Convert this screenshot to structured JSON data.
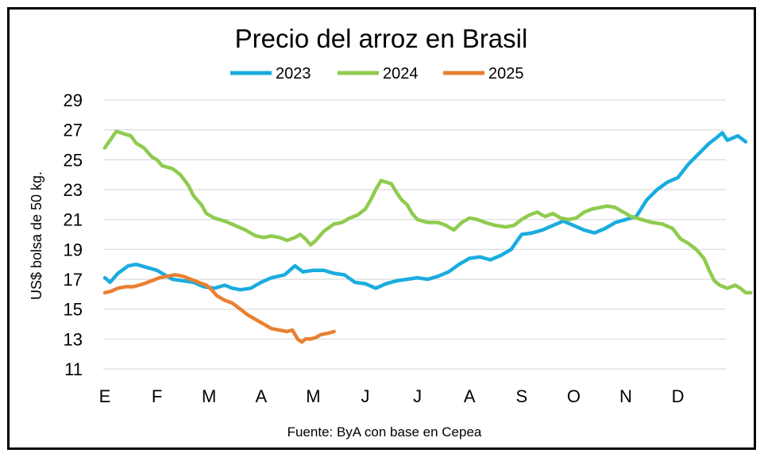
{
  "chart_data": {
    "type": "line",
    "title": "Precio del arroz en Brasil",
    "ylabel": "US$ bolsa de 50 kg.",
    "xlabel": "",
    "source": "Fuente: ByA con base en Cepea",
    "ylim": [
      11,
      29
    ],
    "yticks": [
      "11",
      "13",
      "15",
      "17",
      "19",
      "21",
      "23",
      "25",
      "27",
      "29"
    ],
    "categories": [
      "E",
      "F",
      "M",
      "A",
      "M",
      "J",
      "J",
      "A",
      "S",
      "O",
      "N",
      "D"
    ],
    "grid": "horizontal",
    "legend_position": "top-center",
    "series": [
      {
        "name": "2023",
        "color": "#1AACDF",
        "points": [
          [
            0.0,
            17.1
          ],
          [
            0.1,
            16.8
          ],
          [
            0.25,
            17.4
          ],
          [
            0.45,
            17.9
          ],
          [
            0.6,
            18.0
          ],
          [
            0.8,
            17.8
          ],
          [
            1.0,
            17.6
          ],
          [
            1.15,
            17.3
          ],
          [
            1.3,
            17.0
          ],
          [
            1.5,
            16.9
          ],
          [
            1.7,
            16.8
          ],
          [
            1.9,
            16.5
          ],
          [
            2.1,
            16.4
          ],
          [
            2.3,
            16.6
          ],
          [
            2.45,
            16.4
          ],
          [
            2.6,
            16.3
          ],
          [
            2.8,
            16.4
          ],
          [
            3.0,
            16.8
          ],
          [
            3.2,
            17.1
          ],
          [
            3.45,
            17.3
          ],
          [
            3.65,
            17.9
          ],
          [
            3.8,
            17.5
          ],
          [
            4.0,
            17.6
          ],
          [
            4.2,
            17.6
          ],
          [
            4.4,
            17.4
          ],
          [
            4.6,
            17.3
          ],
          [
            4.8,
            16.8
          ],
          [
            5.0,
            16.7
          ],
          [
            5.2,
            16.4
          ],
          [
            5.4,
            16.7
          ],
          [
            5.6,
            16.9
          ],
          [
            5.8,
            17.0
          ],
          [
            6.0,
            17.1
          ],
          [
            6.2,
            17.0
          ],
          [
            6.4,
            17.2
          ],
          [
            6.6,
            17.5
          ],
          [
            6.8,
            18.0
          ],
          [
            7.0,
            18.4
          ],
          [
            7.2,
            18.5
          ],
          [
            7.4,
            18.3
          ],
          [
            7.6,
            18.6
          ],
          [
            7.8,
            19.0
          ],
          [
            8.0,
            20.0
          ],
          [
            8.2,
            20.1
          ],
          [
            8.4,
            20.3
          ],
          [
            8.6,
            20.6
          ],
          [
            8.8,
            20.9
          ],
          [
            9.0,
            20.6
          ],
          [
            9.2,
            20.3
          ],
          [
            9.4,
            20.1
          ],
          [
            9.6,
            20.4
          ],
          [
            9.8,
            20.8
          ],
          [
            10.0,
            21.0
          ],
          [
            10.2,
            21.2
          ],
          [
            10.4,
            22.3
          ],
          [
            10.6,
            23.0
          ],
          [
            10.8,
            23.5
          ],
          [
            11.0,
            23.8
          ],
          [
            11.2,
            24.7
          ],
          [
            11.4,
            25.4
          ],
          [
            11.6,
            26.1
          ],
          [
            11.75,
            26.5
          ],
          [
            11.85,
            26.8
          ],
          [
            11.95,
            26.3
          ],
          [
            12.15,
            26.6
          ],
          [
            12.3,
            26.2
          ]
        ]
      },
      {
        "name": "2024",
        "color": "#8FCB4E",
        "points": [
          [
            0.0,
            25.8
          ],
          [
            0.1,
            26.3
          ],
          [
            0.22,
            26.9
          ],
          [
            0.4,
            26.7
          ],
          [
            0.5,
            26.6
          ],
          [
            0.6,
            26.1
          ],
          [
            0.75,
            25.8
          ],
          [
            0.9,
            25.2
          ],
          [
            1.0,
            25.0
          ],
          [
            1.1,
            24.6
          ],
          [
            1.3,
            24.4
          ],
          [
            1.45,
            24.0
          ],
          [
            1.6,
            23.3
          ],
          [
            1.7,
            22.6
          ],
          [
            1.85,
            22.0
          ],
          [
            1.95,
            21.4
          ],
          [
            2.1,
            21.1
          ],
          [
            2.3,
            20.9
          ],
          [
            2.5,
            20.6
          ],
          [
            2.7,
            20.3
          ],
          [
            2.9,
            19.9
          ],
          [
            3.05,
            19.8
          ],
          [
            3.2,
            19.9
          ],
          [
            3.35,
            19.8
          ],
          [
            3.5,
            19.6
          ],
          [
            3.65,
            19.8
          ],
          [
            3.75,
            20.0
          ],
          [
            3.85,
            19.7
          ],
          [
            3.95,
            19.3
          ],
          [
            4.05,
            19.6
          ],
          [
            4.2,
            20.2
          ],
          [
            4.4,
            20.7
          ],
          [
            4.55,
            20.8
          ],
          [
            4.7,
            21.1
          ],
          [
            4.85,
            21.3
          ],
          [
            5.0,
            21.7
          ],
          [
            5.1,
            22.3
          ],
          [
            5.2,
            23.0
          ],
          [
            5.3,
            23.6
          ],
          [
            5.4,
            23.5
          ],
          [
            5.5,
            23.4
          ],
          [
            5.6,
            22.8
          ],
          [
            5.7,
            22.3
          ],
          [
            5.8,
            22.0
          ],
          [
            5.9,
            21.4
          ],
          [
            6.0,
            21.0
          ],
          [
            6.2,
            20.8
          ],
          [
            6.4,
            20.8
          ],
          [
            6.55,
            20.6
          ],
          [
            6.7,
            20.3
          ],
          [
            6.85,
            20.8
          ],
          [
            7.0,
            21.1
          ],
          [
            7.15,
            21.0
          ],
          [
            7.3,
            20.8
          ],
          [
            7.5,
            20.6
          ],
          [
            7.7,
            20.5
          ],
          [
            7.85,
            20.6
          ],
          [
            8.0,
            21.0
          ],
          [
            8.15,
            21.3
          ],
          [
            8.3,
            21.5
          ],
          [
            8.45,
            21.2
          ],
          [
            8.6,
            21.4
          ],
          [
            8.75,
            21.1
          ],
          [
            8.9,
            21.0
          ],
          [
            9.05,
            21.1
          ],
          [
            9.2,
            21.5
          ],
          [
            9.35,
            21.7
          ],
          [
            9.5,
            21.8
          ],
          [
            9.65,
            21.9
          ],
          [
            9.8,
            21.8
          ],
          [
            9.95,
            21.5
          ],
          [
            10.1,
            21.2
          ],
          [
            10.3,
            21.0
          ],
          [
            10.5,
            20.8
          ],
          [
            10.7,
            20.7
          ],
          [
            10.9,
            20.4
          ],
          [
            11.05,
            19.7
          ],
          [
            11.2,
            19.4
          ],
          [
            11.35,
            19.0
          ],
          [
            11.5,
            18.4
          ],
          [
            11.6,
            17.6
          ],
          [
            11.7,
            16.9
          ],
          [
            11.8,
            16.6
          ],
          [
            11.95,
            16.4
          ],
          [
            12.1,
            16.6
          ],
          [
            12.2,
            16.4
          ],
          [
            12.3,
            16.1
          ],
          [
            12.4,
            16.1
          ]
        ]
      },
      {
        "name": "2025",
        "color": "#E98032",
        "points": [
          [
            0.0,
            16.1
          ],
          [
            0.12,
            16.2
          ],
          [
            0.25,
            16.4
          ],
          [
            0.4,
            16.5
          ],
          [
            0.55,
            16.5
          ],
          [
            0.75,
            16.7
          ],
          [
            0.9,
            16.9
          ],
          [
            1.05,
            17.1
          ],
          [
            1.2,
            17.2
          ],
          [
            1.35,
            17.3
          ],
          [
            1.5,
            17.2
          ],
          [
            1.65,
            17.0
          ],
          [
            1.8,
            16.8
          ],
          [
            1.95,
            16.6
          ],
          [
            2.05,
            16.3
          ],
          [
            2.15,
            15.9
          ],
          [
            2.3,
            15.6
          ],
          [
            2.45,
            15.4
          ],
          [
            2.6,
            15.0
          ],
          [
            2.75,
            14.6
          ],
          [
            2.9,
            14.3
          ],
          [
            3.05,
            14.0
          ],
          [
            3.2,
            13.7
          ],
          [
            3.35,
            13.6
          ],
          [
            3.5,
            13.5
          ],
          [
            3.6,
            13.6
          ],
          [
            3.7,
            13.0
          ],
          [
            3.78,
            12.8
          ],
          [
            3.85,
            13.0
          ],
          [
            3.95,
            13.0
          ],
          [
            4.05,
            13.1
          ],
          [
            4.15,
            13.3
          ],
          [
            4.3,
            13.4
          ],
          [
            4.4,
            13.5
          ]
        ]
      }
    ]
  }
}
